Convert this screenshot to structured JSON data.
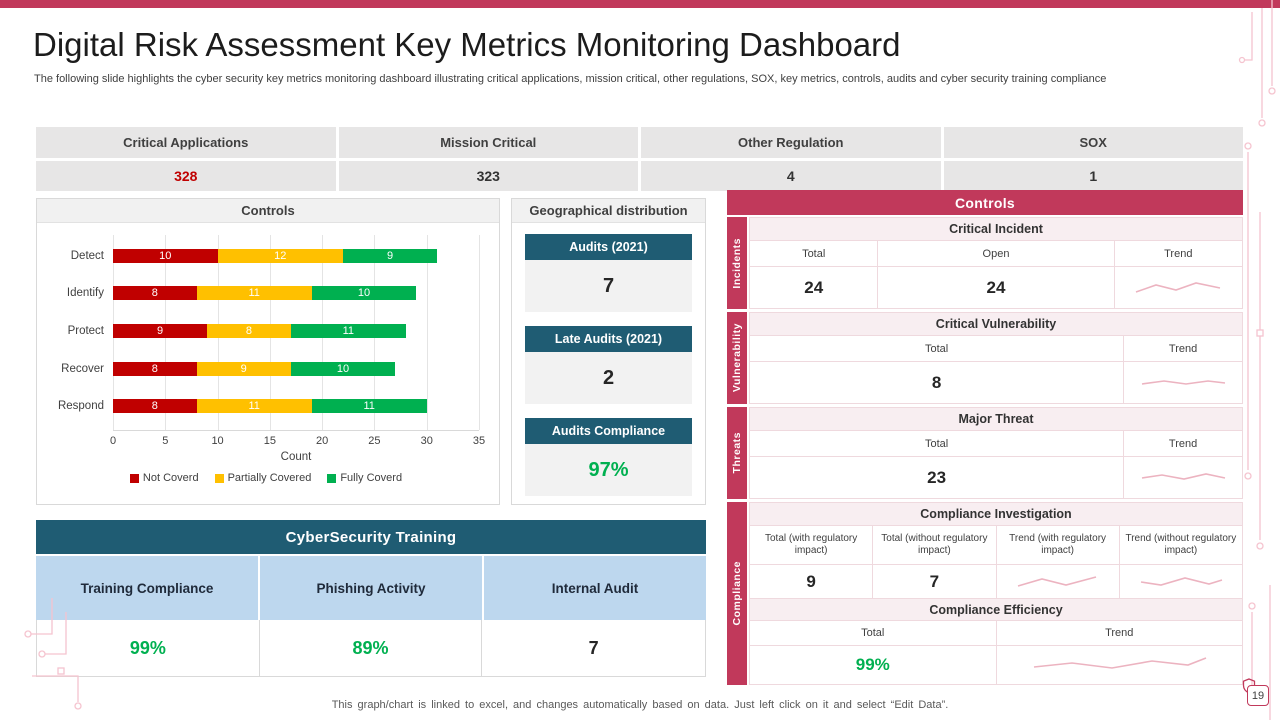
{
  "colors": {
    "crimson": "#C1395B",
    "teal": "#1F5C73",
    "light_blue": "#BDD7EE",
    "red": "#C00000",
    "amber": "#FFC000",
    "green": "#00B050",
    "sparkline": "#ECB3C0",
    "gray_cell": "#E7E6E6",
    "pink_row": "#F8EEF1"
  },
  "header": {
    "title": "Digital Risk Assessment Key Metrics Monitoring Dashboard",
    "subtitle": "The following slide highlights the cyber security key metrics monitoring dashboard illustrating critical applications, mission critical, other regulations, SOX, key metrics, controls, audits and cyber security training compliance"
  },
  "kpis": [
    {
      "label": "Critical Applications",
      "value": "328"
    },
    {
      "label": "Mission Critical",
      "value": "323"
    },
    {
      "label": "Other Regulation",
      "value": "4"
    },
    {
      "label": "SOX",
      "value": "1"
    }
  ],
  "chart_data": {
    "type": "bar",
    "orientation": "horizontal",
    "stacked": true,
    "title": "Controls",
    "categories": [
      "Detect",
      "Identify",
      "Protect",
      "Recover",
      "Respond"
    ],
    "series": [
      {
        "name": "Not Coverd",
        "color": "#C00000",
        "values": [
          10,
          8,
          9,
          8,
          8
        ]
      },
      {
        "name": "Partially Covered",
        "color": "#FFC000",
        "values": [
          12,
          11,
          8,
          9,
          11
        ]
      },
      {
        "name": "Fully Coverd",
        "color": "#00B050",
        "values": [
          9,
          10,
          11,
          10,
          11
        ]
      }
    ],
    "xlabel": "Count",
    "xlim": [
      0,
      35
    ],
    "xticks": [
      0,
      5,
      10,
      15,
      20,
      25,
      30,
      35
    ],
    "grid": true,
    "legend_position": "bottom"
  },
  "geo_panel": {
    "title": "Geographical distribution",
    "items": [
      {
        "label": "Audits (2021)",
        "value": "7"
      },
      {
        "label": "Late Audits (2021)",
        "value": "2"
      },
      {
        "label": "Audits Compliance",
        "value": "97%"
      }
    ]
  },
  "controls_panel": {
    "title": "Controls",
    "tabs": [
      "Incidents",
      "Vulnerability",
      "Threats",
      "Compliance"
    ],
    "sections": [
      {
        "title": "Critical Incident",
        "columns": [
          "Total",
          "Open",
          "Trend"
        ],
        "values": [
          "24",
          "24"
        ]
      },
      {
        "title": "Critical Vulnerability",
        "columns": [
          "Total",
          "Trend"
        ],
        "values": [
          "8"
        ]
      },
      {
        "title": "Major Threat",
        "columns": [
          "Total",
          "Trend"
        ],
        "values": [
          "23"
        ]
      },
      {
        "title": "Compliance Investigation",
        "columns": [
          "Total (with regulatory impact)",
          "Total (without regulatory impact)",
          "Trend (with regulatory impact)",
          "Trend (without regulatory impact)"
        ],
        "values": [
          "9",
          "7"
        ]
      },
      {
        "title": "Compliance Efficiency",
        "columns": [
          "Total",
          "Trend"
        ],
        "values": [
          "99%"
        ]
      }
    ]
  },
  "training_panel": {
    "title": "CyberSecurity Training",
    "columns": [
      "Training Compliance",
      "Phishing Activity",
      "Internal Audit"
    ],
    "values": [
      "99%",
      "89%",
      "7"
    ]
  },
  "footer": {
    "note": "This graph/chart is linked to excel, and changes automatically based on data. Just left click on it and select “Edit Data”.",
    "page": "19"
  },
  "icons": {
    "page_shield": "shield-icon",
    "trend": "sparkline-icon",
    "decoration": "circuit-lines"
  }
}
